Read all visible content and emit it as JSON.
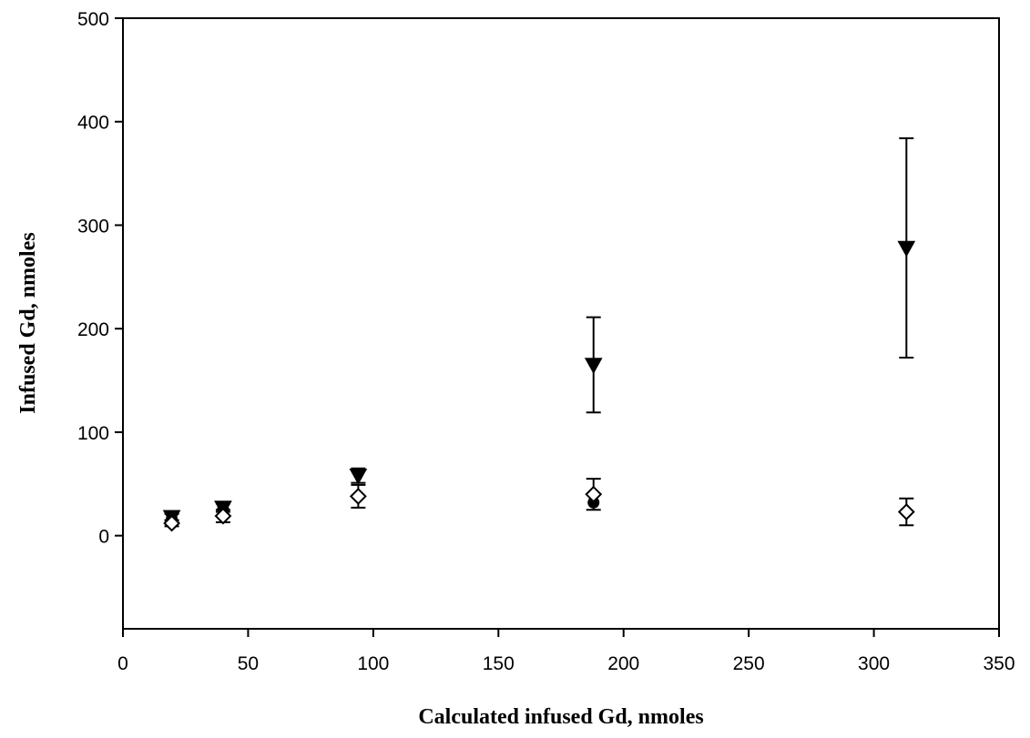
{
  "chart_data": {
    "type": "scatter",
    "title": "",
    "xlabel": "Calculated infused Gd, nmoles",
    "ylabel": "Infused Gd, nmoles",
    "xlim": [
      0,
      350
    ],
    "ylim": [
      -90,
      500
    ],
    "xticks": [
      0,
      50,
      100,
      150,
      200,
      250,
      300,
      350
    ],
    "yticks": [
      0,
      100,
      200,
      300,
      400,
      500
    ],
    "grid": false,
    "legend": "none",
    "series": [
      {
        "marker": "triangle-down-filled",
        "color": "#000000",
        "points": [
          {
            "x": 19.5,
            "y": 18,
            "err": 3
          },
          {
            "x": 40,
            "y": 27,
            "err": 4
          },
          {
            "x": 94,
            "y": 58,
            "err": 7
          },
          {
            "x": 188,
            "y": 165,
            "err": 46
          },
          {
            "x": 313,
            "y": 278,
            "err": 106
          }
        ]
      },
      {
        "marker": "circle-filled",
        "color": "#000000",
        "points": [
          {
            "x": 19.5,
            "y": 16,
            "err": 0
          },
          {
            "x": 40,
            "y": 26,
            "err": 0
          },
          {
            "x": 188,
            "y": 32,
            "err": 0
          }
        ]
      },
      {
        "marker": "diamond-open",
        "color": "#000000",
        "points": [
          {
            "x": 19.5,
            "y": 12,
            "err": 3
          },
          {
            "x": 40,
            "y": 19,
            "err": 6
          },
          {
            "x": 94,
            "y": 38,
            "err": 11
          },
          {
            "x": 188,
            "y": 40,
            "err": 15
          },
          {
            "x": 313,
            "y": 23,
            "err": 13
          }
        ]
      }
    ]
  }
}
